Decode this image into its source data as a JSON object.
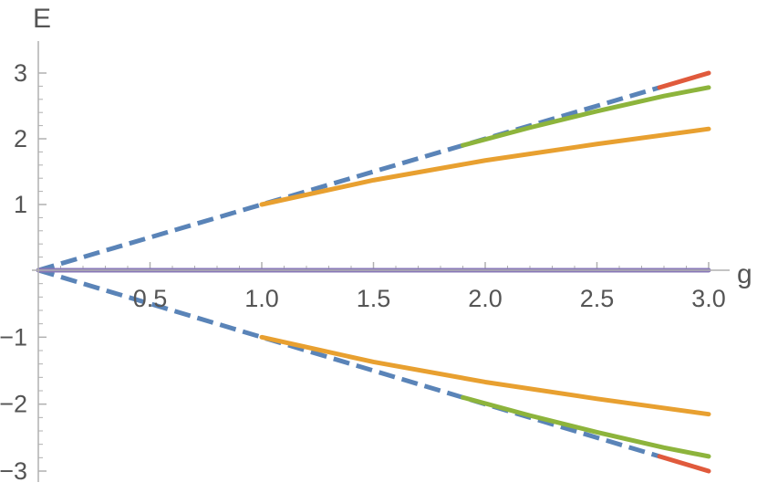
{
  "chart_data": {
    "type": "line",
    "title": "",
    "xlabel": "g",
    "ylabel": "E",
    "xlim": [
      0,
      3.0
    ],
    "ylim": [
      -3,
      3
    ],
    "x_ticks": [
      0.5,
      1.0,
      1.5,
      2.0,
      2.5,
      3.0
    ],
    "x_tick_labels": [
      "0.5",
      "1.0",
      "1.5",
      "2.0",
      "2.5",
      "3.0"
    ],
    "y_ticks": [
      -3,
      -2,
      -1,
      1,
      2,
      3
    ],
    "y_tick_labels": [
      "−3",
      "−2",
      "−1",
      "1",
      "2",
      "3"
    ],
    "grid": false,
    "legend": "none",
    "series": [
      {
        "color": "#e8a030",
        "style": "solid",
        "x": [
          1.0,
          1.5,
          2.0,
          2.5,
          3.0
        ],
        "y": [
          1.0,
          1.37,
          1.67,
          1.92,
          2.15
        ],
        "mirror": true
      },
      {
        "color": "#8db43c",
        "style": "solid",
        "x": [
          1.9,
          2.2,
          2.5,
          2.8,
          3.0
        ],
        "y": [
          1.9,
          2.17,
          2.42,
          2.65,
          2.78
        ],
        "mirror": true
      },
      {
        "color": "#e05a3c",
        "style": "solid",
        "x": [
          2.78,
          3.0
        ],
        "y": [
          2.78,
          3.0
        ],
        "mirror": true
      },
      {
        "color": "#5a84b8",
        "style": "dashed",
        "x": [
          0,
          2.78
        ],
        "y": [
          0,
          2.78
        ],
        "mirror": true
      },
      {
        "color": "#8878b8",
        "style": "solid",
        "x": [
          0,
          3.0
        ],
        "y": [
          0,
          0
        ],
        "mirror": false
      }
    ]
  }
}
